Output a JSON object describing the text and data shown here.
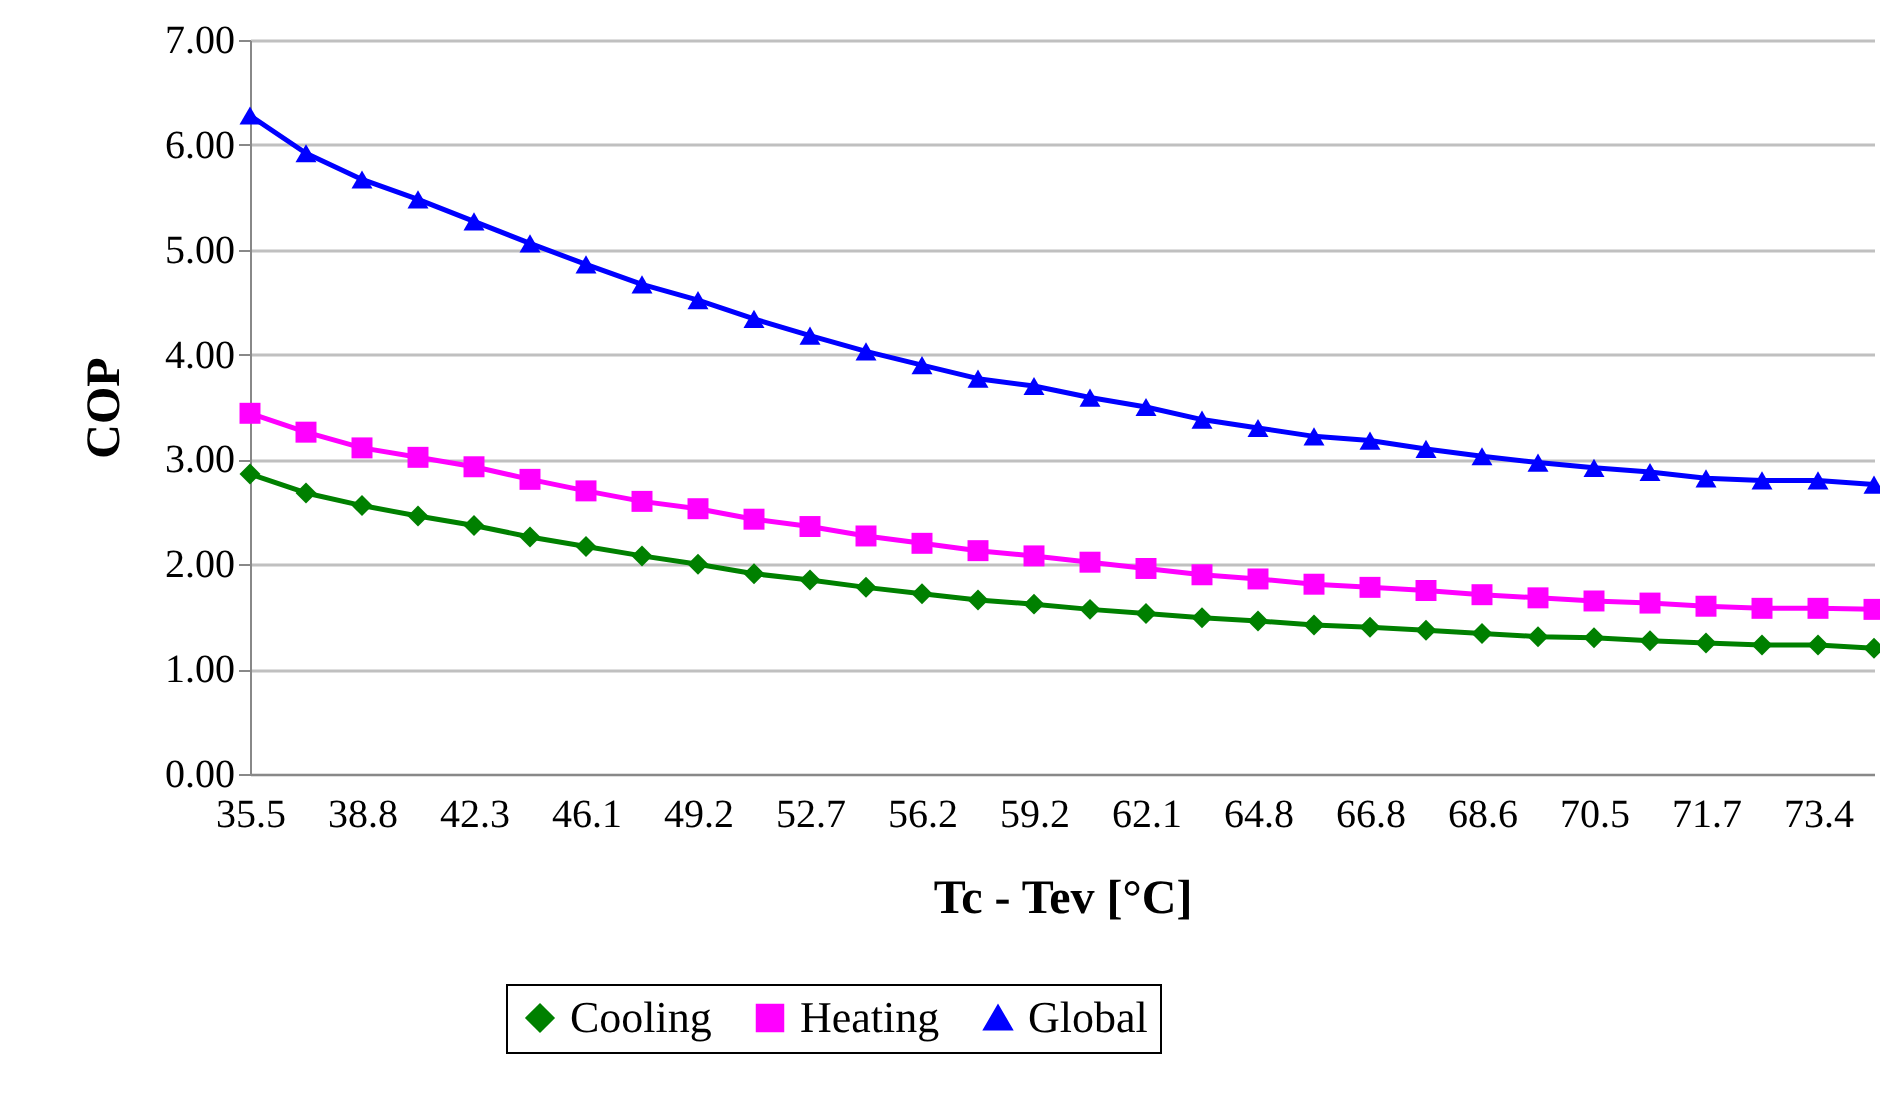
{
  "chart_data": {
    "type": "line",
    "xlabel": "Tc - Tev [°C]",
    "ylabel": "COP",
    "categories": [
      "35.5",
      null,
      "38.8",
      null,
      "42.3",
      null,
      "46.1",
      null,
      "49.2",
      null,
      "52.7",
      null,
      "56.2",
      null,
      "59.2",
      null,
      "62.1",
      null,
      "64.8",
      null,
      "66.8",
      null,
      "68.6",
      null,
      "70.5",
      null,
      "71.7",
      null,
      "73.4",
      null
    ],
    "series": [
      {
        "name": "Cooling",
        "color": "#008000",
        "marker": "diamond",
        "values": [
          2.86,
          2.68,
          2.56,
          2.46,
          2.37,
          2.26,
          2.17,
          2.08,
          2.0,
          1.91,
          1.85,
          1.78,
          1.72,
          1.66,
          1.62,
          1.57,
          1.53,
          1.49,
          1.46,
          1.42,
          1.4,
          1.37,
          1.34,
          1.31,
          1.3,
          1.27,
          1.25,
          1.23,
          1.23,
          1.2
        ]
      },
      {
        "name": "Heating",
        "color": "#ff00ff",
        "marker": "square",
        "values": [
          3.44,
          3.26,
          3.11,
          3.02,
          2.93,
          2.81,
          2.7,
          2.6,
          2.53,
          2.43,
          2.36,
          2.27,
          2.2,
          2.13,
          2.08,
          2.02,
          1.96,
          1.9,
          1.86,
          1.81,
          1.78,
          1.75,
          1.71,
          1.68,
          1.65,
          1.63,
          1.6,
          1.58,
          1.58,
          1.57
        ]
      },
      {
        "name": "Global",
        "color": "#0000ff",
        "marker": "triangle",
        "values": [
          6.28,
          5.92,
          5.67,
          5.48,
          5.27,
          5.06,
          4.86,
          4.67,
          4.52,
          4.34,
          4.18,
          4.03,
          3.9,
          3.77,
          3.7,
          3.59,
          3.5,
          3.38,
          3.3,
          3.22,
          3.18,
          3.1,
          3.03,
          2.97,
          2.92,
          2.88,
          2.82,
          2.8,
          2.8,
          2.76
        ]
      }
    ],
    "ylim": [
      0,
      7
    ],
    "yticks": [
      {
        "value": 0,
        "label": "0.00"
      },
      {
        "value": 1,
        "label": "1.00"
      },
      {
        "value": 2,
        "label": "2.00"
      },
      {
        "value": 3,
        "label": "3.00"
      },
      {
        "value": 4,
        "label": "4.00"
      },
      {
        "value": 5,
        "label": "5.00"
      },
      {
        "value": 6,
        "label": "6.00"
      },
      {
        "value": 7,
        "label": "7.00"
      }
    ],
    "grid": "y",
    "legend": "bottom",
    "line_style": "solid"
  }
}
